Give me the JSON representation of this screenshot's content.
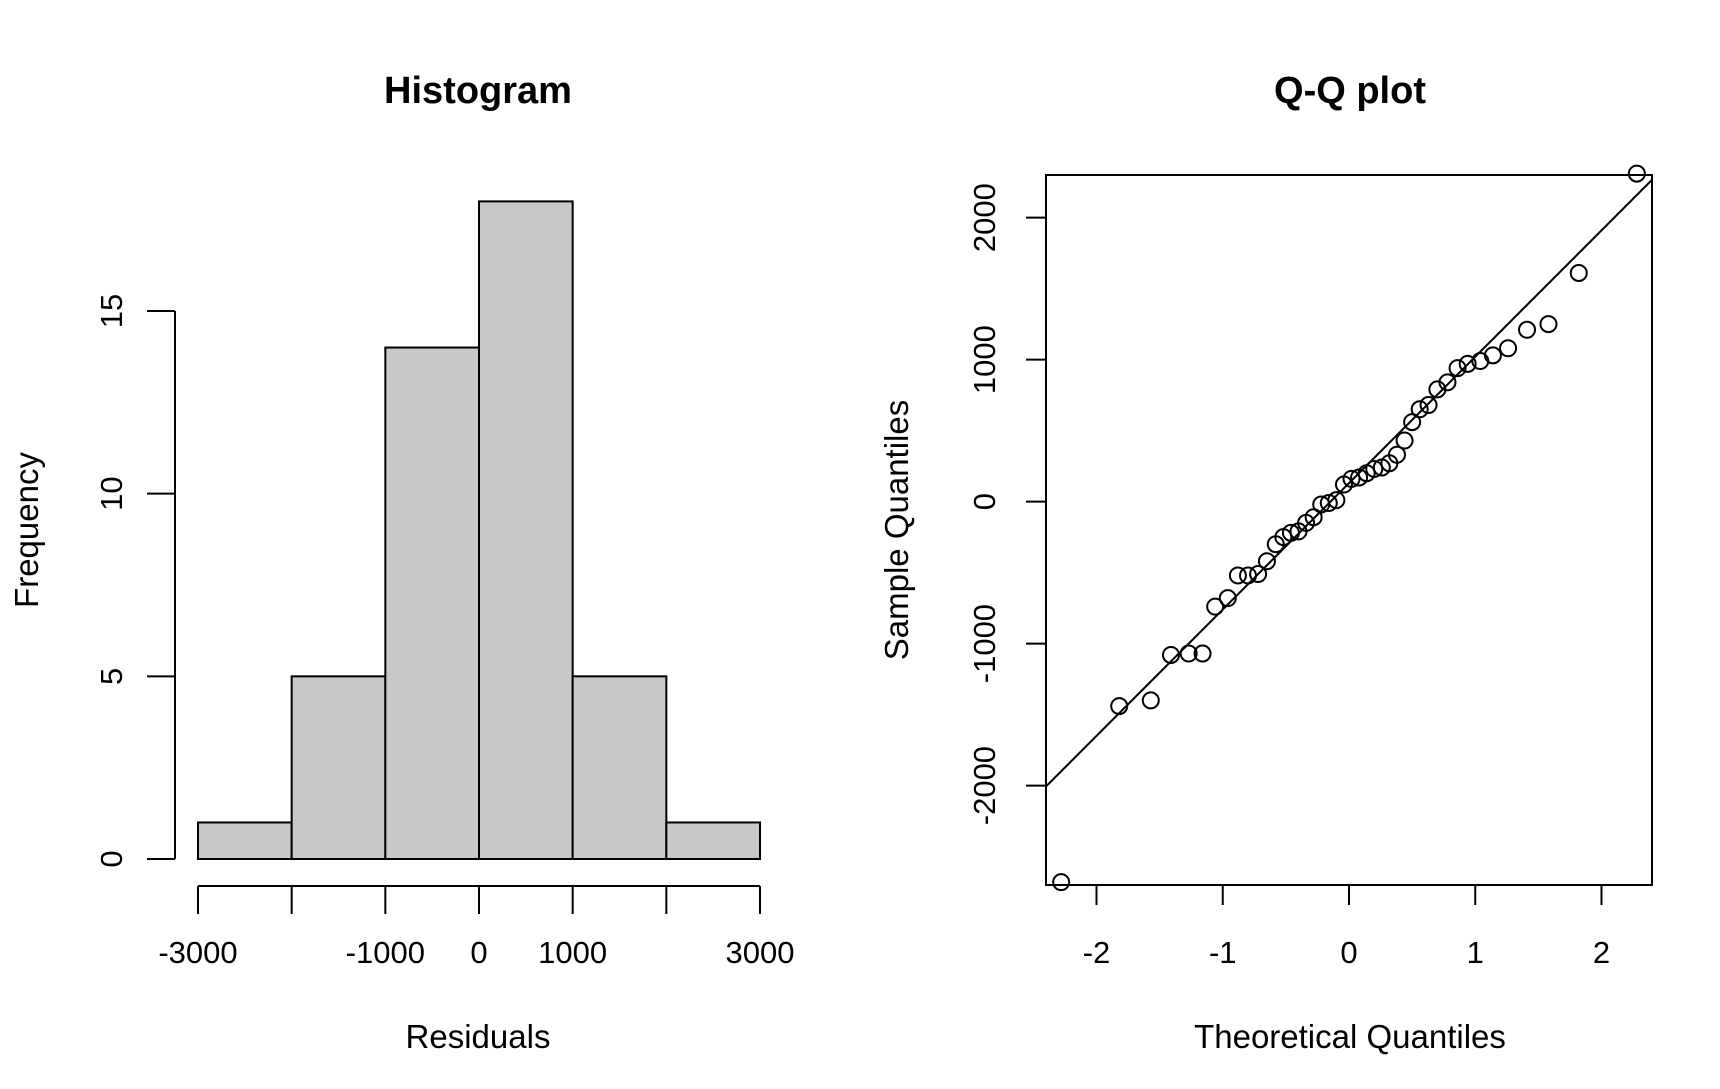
{
  "chart_data": [
    {
      "type": "bar",
      "title": "Histogram",
      "xlabel": "Residuals",
      "ylabel": "Frequency",
      "bins": [
        {
          "from": -3000,
          "to": -2000,
          "count": 1
        },
        {
          "from": -2000,
          "to": -1000,
          "count": 5
        },
        {
          "from": -1000,
          "to": 0,
          "count": 14
        },
        {
          "from": 0,
          "to": 1000,
          "count": 18
        },
        {
          "from": 1000,
          "to": 2000,
          "count": 5
        },
        {
          "from": 2000,
          "to": 3000,
          "count": 1
        }
      ],
      "xlim": [
        -3000,
        3000
      ],
      "ylim": [
        0,
        18
      ],
      "x_tick_marks": [
        -3000,
        -2000,
        -1000,
        0,
        1000,
        2000,
        3000
      ],
      "x_tick_labels": [
        "-3000",
        "-1000",
        "0",
        "1000",
        "3000"
      ],
      "y_ticks": [
        0,
        5,
        10,
        15
      ],
      "y_tick_labels": [
        "0",
        "5",
        "10",
        "15"
      ],
      "grid": false,
      "bar_color": "#c8c8c8"
    },
    {
      "type": "scatter",
      "title": "Q-Q plot",
      "xlabel": "Theoretical Quantiles",
      "ylabel": "Sample Quantiles",
      "xlim": [
        -2.4,
        2.4
      ],
      "ylim": [
        -2700,
        2300
      ],
      "x_ticks": [
        -2,
        -1,
        0,
        1,
        2
      ],
      "x_tick_labels": [
        "-2",
        "-1",
        "0",
        "1",
        "2"
      ],
      "y_ticks": [
        -2000,
        -1000,
        0,
        1000,
        2000
      ],
      "y_tick_labels": [
        "-2000",
        "-1000",
        "0",
        "1000",
        "2000"
      ],
      "grid": false,
      "reference_line": {
        "intercept": 130,
        "slope": 890
      },
      "points": [
        [
          -2.28,
          -2680
        ],
        [
          -1.82,
          -1440
        ],
        [
          -1.57,
          -1400
        ],
        [
          -1.41,
          -1080
        ],
        [
          -1.27,
          -1070
        ],
        [
          -1.16,
          -1070
        ],
        [
          -1.06,
          -740
        ],
        [
          -0.96,
          -680
        ],
        [
          -0.88,
          -520
        ],
        [
          -0.8,
          -520
        ],
        [
          -0.72,
          -510
        ],
        [
          -0.65,
          -420
        ],
        [
          -0.58,
          -300
        ],
        [
          -0.52,
          -250
        ],
        [
          -0.46,
          -220
        ],
        [
          -0.4,
          -210
        ],
        [
          -0.34,
          -150
        ],
        [
          -0.28,
          -110
        ],
        [
          -0.22,
          -20
        ],
        [
          -0.16,
          -10
        ],
        [
          -0.1,
          10
        ],
        [
          -0.04,
          120
        ],
        [
          0.02,
          160
        ],
        [
          0.08,
          170
        ],
        [
          0.14,
          200
        ],
        [
          0.2,
          230
        ],
        [
          0.26,
          240
        ],
        [
          0.32,
          270
        ],
        [
          0.38,
          330
        ],
        [
          0.44,
          430
        ],
        [
          0.5,
          560
        ],
        [
          0.56,
          650
        ],
        [
          0.63,
          680
        ],
        [
          0.7,
          790
        ],
        [
          0.78,
          840
        ],
        [
          0.86,
          940
        ],
        [
          0.94,
          970
        ],
        [
          1.04,
          990
        ],
        [
          1.14,
          1030
        ],
        [
          1.26,
          1080
        ],
        [
          1.41,
          1210
        ],
        [
          1.58,
          1250
        ],
        [
          1.82,
          1610
        ],
        [
          2.28,
          2310
        ]
      ],
      "marker": "open circle"
    }
  ]
}
